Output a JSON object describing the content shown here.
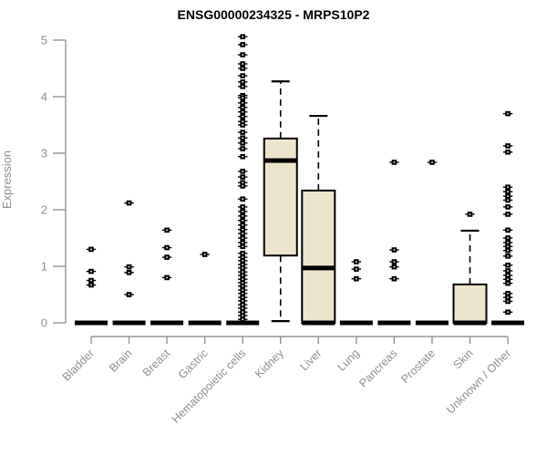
{
  "chart_data": {
    "type": "boxplot",
    "title": "ENSG00000234325 - MRPS10P2",
    "ylabel": "Expression",
    "xlabel": "",
    "ylim": [
      0,
      5
    ],
    "yticks": [
      0,
      1,
      2,
      3,
      4,
      5
    ],
    "grid": false,
    "legend": false,
    "colors": {
      "box_fill": "#ece5cb",
      "box_border": "#000000",
      "median": "#000000",
      "outlier": "#000000",
      "axis_line": "#949494",
      "tick_label": "#8f8f8f",
      "title": "#000000"
    },
    "categories": [
      "Bladder",
      "Brain",
      "Breast",
      "Gastric",
      "Hematopoietic cells",
      "Kidney",
      "Liver",
      "Lung",
      "Pancreas",
      "Prostate",
      "Skin",
      "Unknown / Other"
    ],
    "series": [
      {
        "category": "Bladder",
        "slug": "bladder",
        "box": {
          "q1": 0,
          "median": 0,
          "q3": 0,
          "whisker_low": 0,
          "whisker_high": 0
        },
        "outliers": [
          1.3,
          0.91,
          0.75,
          0.67
        ]
      },
      {
        "category": "Brain",
        "slug": "brain",
        "box": {
          "q1": 0,
          "median": 0,
          "q3": 0,
          "whisker_low": 0,
          "whisker_high": 0
        },
        "outliers": [
          2.12,
          0.99,
          0.89,
          0.5
        ]
      },
      {
        "category": "Breast",
        "slug": "breast",
        "box": {
          "q1": 0,
          "median": 0,
          "q3": 0,
          "whisker_low": 0,
          "whisker_high": 0
        },
        "outliers": [
          1.64,
          1.33,
          1.16,
          0.8
        ]
      },
      {
        "category": "Gastric",
        "slug": "gastric",
        "box": {
          "q1": 0,
          "median": 0,
          "q3": 0,
          "whisker_low": 0,
          "whisker_high": 0
        },
        "outliers": [
          1.21
        ]
      },
      {
        "category": "Hematopoietic cells",
        "slug": "hematopoietic-cells",
        "box": {
          "q1": 0,
          "median": 0,
          "q3": 0,
          "whisker_low": 0,
          "whisker_high": 0
        },
        "outliers": [
          5.06,
          4.92,
          4.74,
          4.58,
          4.5,
          4.37,
          4.26,
          4.18,
          4.02,
          3.98,
          3.89,
          3.81,
          3.73,
          3.65,
          3.56,
          3.5,
          3.37,
          3.27,
          3.18,
          3.08,
          2.94,
          2.68,
          2.58,
          2.48,
          2.42,
          2.19,
          2.05,
          1.97,
          1.89,
          1.81,
          1.73,
          1.65,
          1.58,
          1.5,
          1.42,
          1.35,
          1.23,
          1.16,
          1.1,
          1.03,
          0.97,
          0.9,
          0.84,
          0.77,
          0.71,
          0.65,
          0.58,
          0.52,
          0.45,
          0.39,
          0.32,
          0.26,
          0.19,
          0.13,
          0.06
        ]
      },
      {
        "category": "Kidney",
        "slug": "kidney",
        "box": {
          "q1": 1.19,
          "median": 2.87,
          "q3": 3.26,
          "whisker_low": 0.03,
          "whisker_high": 4.27
        },
        "outliers": []
      },
      {
        "category": "Liver",
        "slug": "liver",
        "box": {
          "q1": 0,
          "median": 0.97,
          "q3": 2.34,
          "whisker_low": 0,
          "whisker_high": 3.66
        },
        "base_bar": true,
        "outliers": []
      },
      {
        "category": "Lung",
        "slug": "lung",
        "box": {
          "q1": 0,
          "median": 0,
          "q3": 0,
          "whisker_low": 0,
          "whisker_high": 0
        },
        "outliers": [
          1.08,
          0.95,
          0.78
        ]
      },
      {
        "category": "Pancreas",
        "slug": "pancreas",
        "box": {
          "q1": 0,
          "median": 0,
          "q3": 0,
          "whisker_low": 0,
          "whisker_high": 0
        },
        "outliers": [
          2.84,
          1.29,
          1.08,
          0.99,
          0.78
        ]
      },
      {
        "category": "Prostate",
        "slug": "prostate",
        "box": {
          "q1": 0,
          "median": 0,
          "q3": 0,
          "whisker_low": 0,
          "whisker_high": 0
        },
        "outliers": [
          2.84
        ]
      },
      {
        "category": "Skin",
        "slug": "skin",
        "box": {
          "q1": 0,
          "median": 0,
          "q3": 0.68,
          "whisker_low": 0,
          "whisker_high": 1.63
        },
        "outliers": [
          1.92
        ]
      },
      {
        "category": "Unknown / Other",
        "slug": "unknown-other",
        "box": {
          "q1": 0,
          "median": 0,
          "q3": 0,
          "whisker_low": 0,
          "whisker_high": 0
        },
        "outliers": [
          3.7,
          3.13,
          3.02,
          2.4,
          2.32,
          2.24,
          2.17,
          2.05,
          1.92,
          1.64,
          1.5,
          1.42,
          1.35,
          1.28,
          1.18,
          1.02,
          0.92,
          0.84,
          0.77,
          0.7,
          0.52,
          0.45,
          0.38,
          0.19
        ]
      }
    ]
  }
}
